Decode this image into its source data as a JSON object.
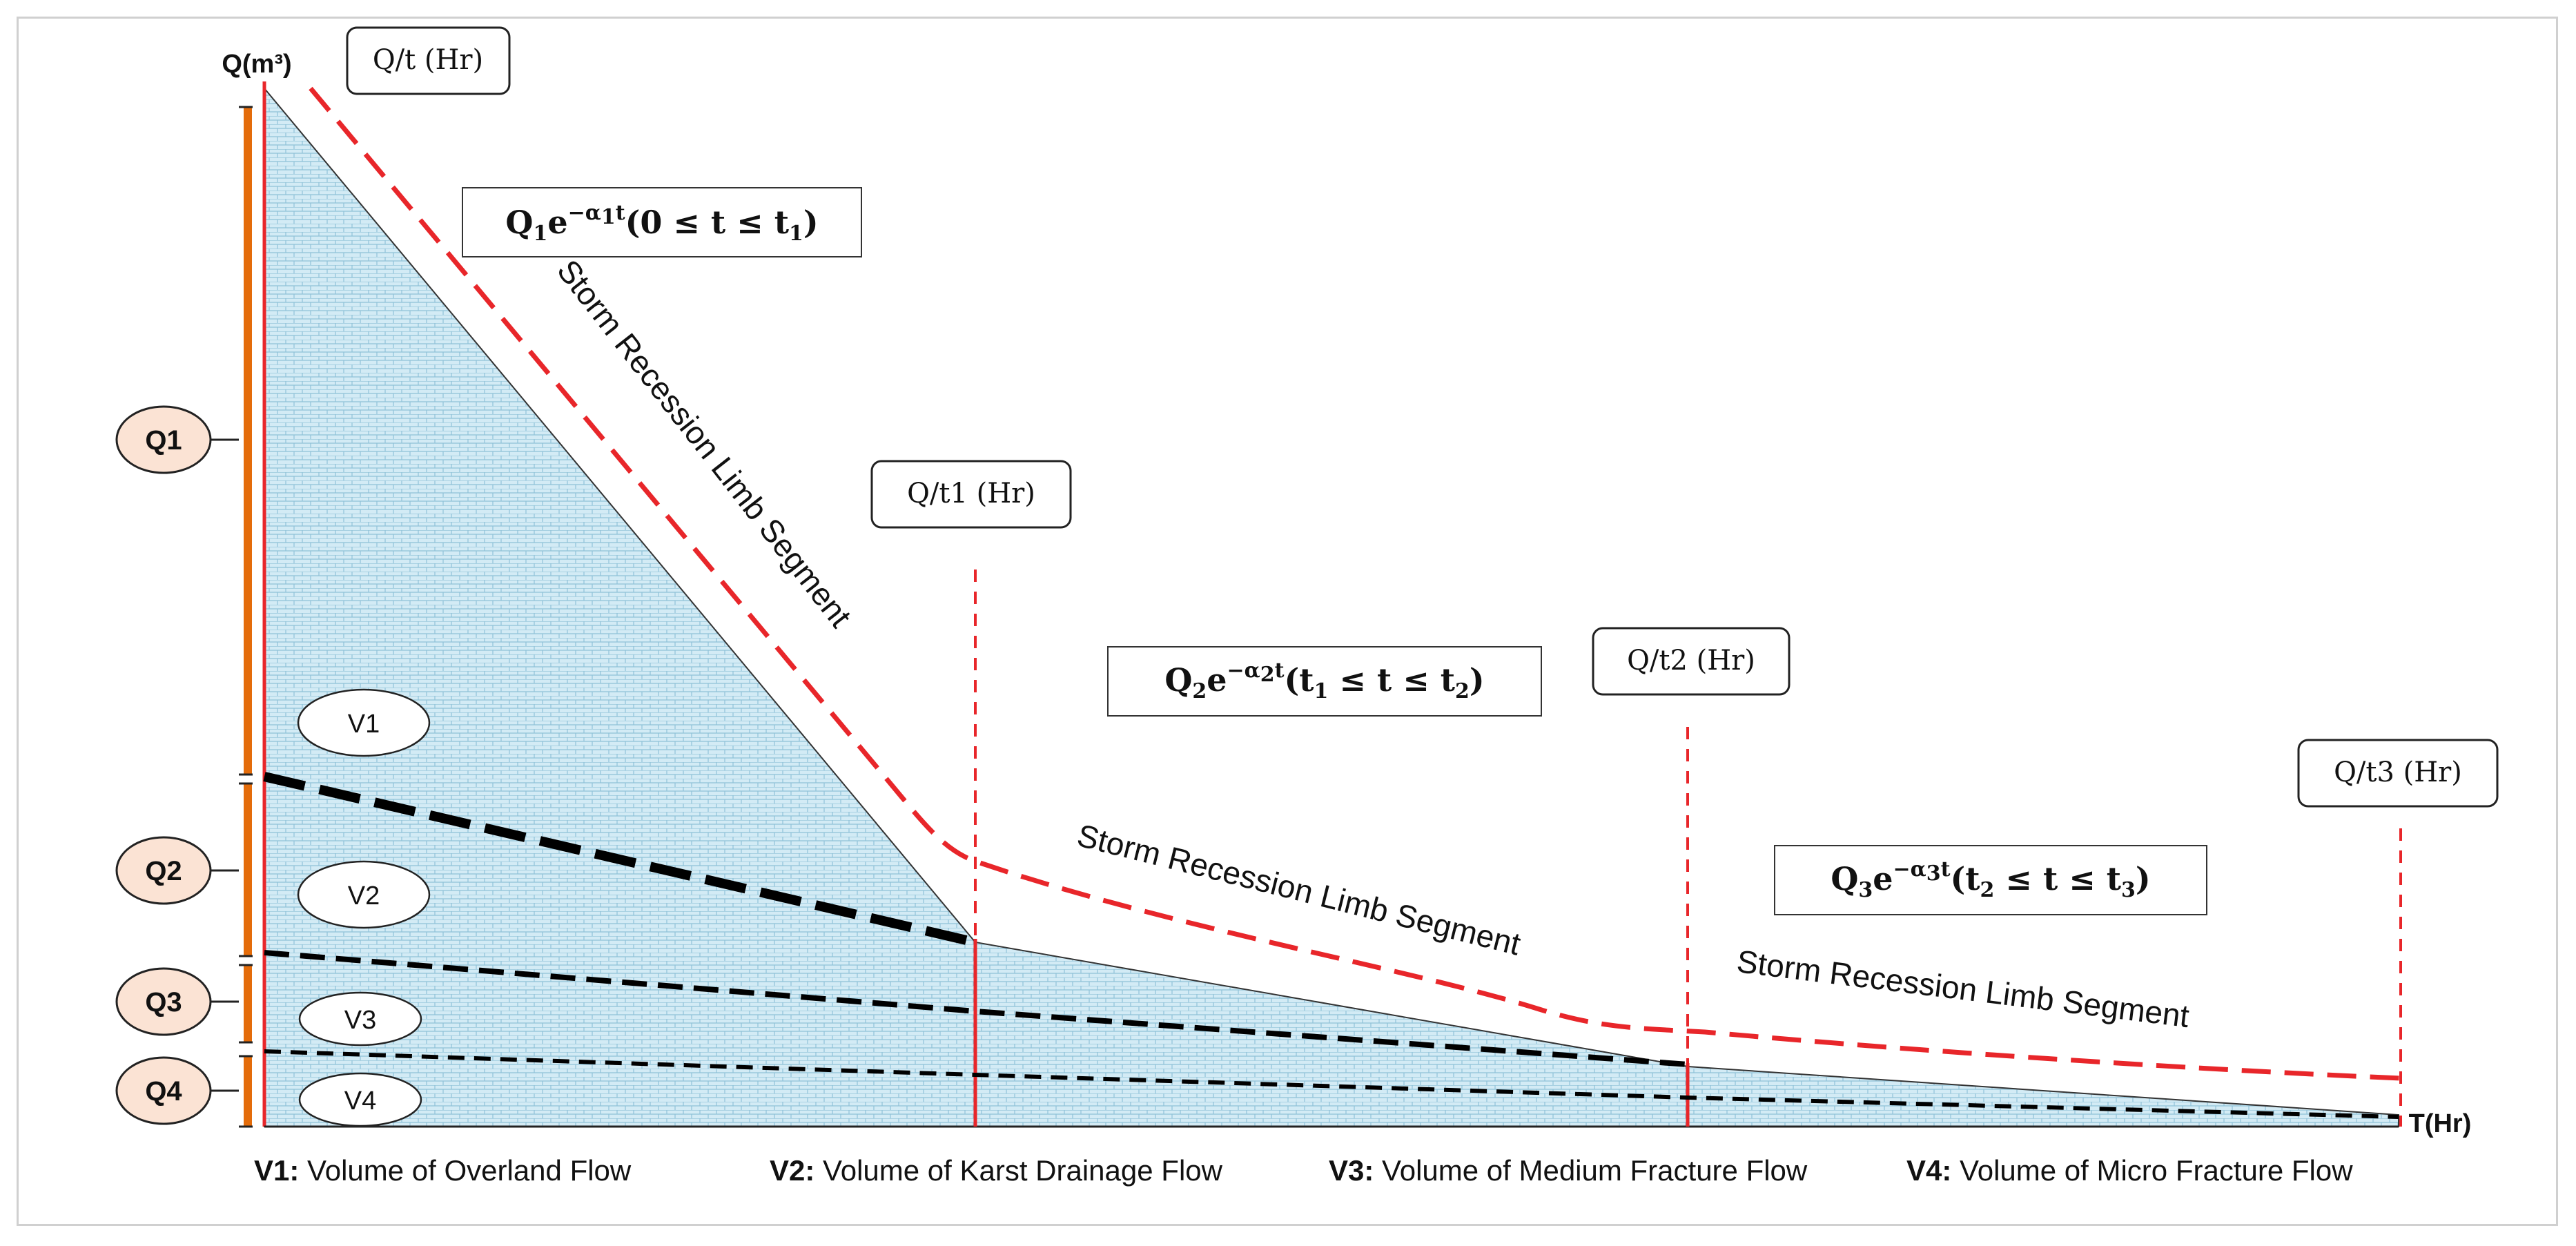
{
  "axis": {
    "y_label": "Q(m³)",
    "x_label": "T(Hr)",
    "y_unit_box": "Q/t (Hr)"
  },
  "time_markers": [
    {
      "label": "Q/t1 (Hr)"
    },
    {
      "label": "Q/t2 (Hr)"
    },
    {
      "label": "Q/t3 (Hr)"
    }
  ],
  "equations": [
    {
      "base": "Q",
      "sub": "1",
      "e": "e",
      "exp_alpha": "−α",
      "exp_sub": "1",
      "exp_t": "t",
      "range_open": "(0 ≤ t ≤ t",
      "range_sub": "1",
      "range_close": ")"
    },
    {
      "base": "Q",
      "sub": "2",
      "e": "e",
      "exp_alpha": "−α",
      "exp_sub": "2",
      "exp_t": "t",
      "range_open": "(t",
      "range_sub_a": "1",
      "range_mid": " ≤ t ≤ t",
      "range_sub": "2",
      "range_close": ")"
    },
    {
      "base": "Q",
      "sub": "3",
      "e": "e",
      "exp_alpha": "−α",
      "exp_sub": "3",
      "exp_t": "t",
      "range_open": "(t",
      "range_sub_a": "2",
      "range_mid": " ≤ t ≤ t",
      "range_sub": "3",
      "range_close": ")"
    }
  ],
  "segment_label": "Storm Recession Limb Segment",
  "flow_components": [
    {
      "q": "Q1",
      "v": "V1"
    },
    {
      "q": "Q2",
      "v": "V2"
    },
    {
      "q": "Q3",
      "v": "V3"
    },
    {
      "q": "Q4",
      "v": "V4"
    }
  ],
  "legend": [
    {
      "key": "V1:",
      "text": " Volume of Overland Flow"
    },
    {
      "key": "V2:",
      "text": " Volume of Karst Drainage Flow"
    },
    {
      "key": "V3:",
      "text": " Volume of Medium Fracture Flow"
    },
    {
      "key": "V4:",
      "text": " Volume of Micro Fracture Flow"
    }
  ],
  "colors": {
    "fill": "#cfe8f3",
    "red": "#e8262a",
    "orange": "#e46c0a",
    "q_fill": "#fbe3d4",
    "black": "#000000"
  }
}
